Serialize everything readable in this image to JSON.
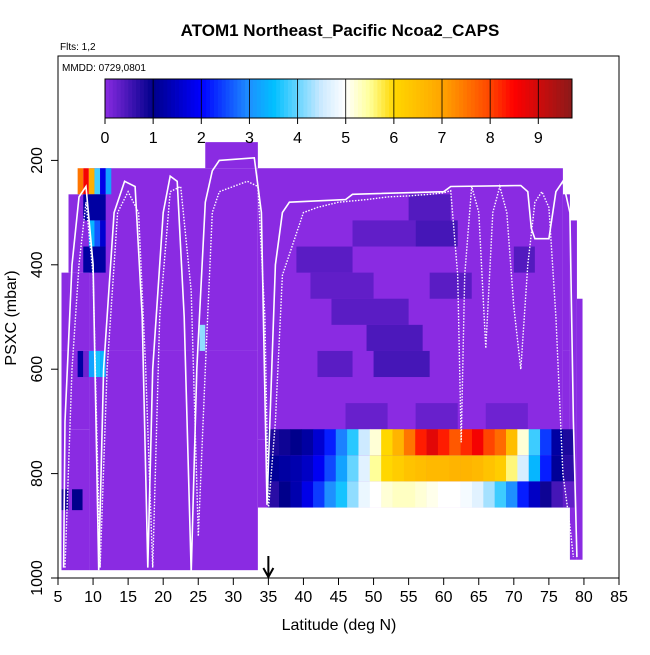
{
  "chart_data": {
    "type": "heatmap",
    "title": "ATOM1 Northeast_Pacific Ncoa2_CAPS",
    "annotations": {
      "flights": "Flts: 1,2",
      "dates": "MMDD: 0729,0801"
    },
    "xlabel": "Latitude (deg N)",
    "ylabel": "PSXC (mbar)",
    "xlim": [
      5,
      85
    ],
    "ylim": [
      1000,
      0
    ],
    "xticks": [
      5,
      10,
      15,
      20,
      25,
      30,
      35,
      40,
      45,
      50,
      55,
      60,
      65,
      70,
      75,
      80,
      85
    ],
    "yticks": [
      200,
      400,
      600,
      800,
      1000
    ],
    "colorbar": {
      "min": 0,
      "max": 9.7,
      "ticks": [
        0,
        1,
        2,
        3,
        4,
        5,
        6,
        7,
        8,
        9
      ],
      "stops": [
        {
          "v": 0,
          "c": "#8a2be2"
        },
        {
          "v": 1,
          "c": "#00008b"
        },
        {
          "v": 2,
          "c": "#0000ff"
        },
        {
          "v": 3,
          "c": "#1e90ff"
        },
        {
          "v": 3.5,
          "c": "#00bfff"
        },
        {
          "v": 4.5,
          "c": "#cdeaff"
        },
        {
          "v": 5,
          "c": "#ffffff"
        },
        {
          "v": 5.5,
          "c": "#ffff99"
        },
        {
          "v": 6,
          "c": "#ffd700"
        },
        {
          "v": 7,
          "c": "#ffa500"
        },
        {
          "v": 8,
          "c": "#ff4500"
        },
        {
          "v": 8.5,
          "c": "#ff0000"
        },
        {
          "v": 9.7,
          "c": "#8b1a1a"
        }
      ]
    },
    "cells": [
      [
        5.5,
        6.5,
        415,
        565,
        0
      ],
      [
        5.5,
        6.5,
        565,
        985,
        0
      ],
      [
        5.5,
        6.5,
        830,
        870,
        0.8
      ],
      [
        6.5,
        9.5,
        265,
        415,
        0
      ],
      [
        6.5,
        9.5,
        415,
        565,
        0
      ],
      [
        6.5,
        9.5,
        565,
        715,
        0
      ],
      [
        6.5,
        9.5,
        715,
        985,
        0
      ],
      [
        7,
        8.5,
        830,
        870,
        1
      ],
      [
        9.5,
        33.5,
        215,
        565,
        0
      ],
      [
        9.5,
        33.5,
        565,
        985,
        0
      ],
      [
        7.8,
        8.6,
        215,
        265,
        7.5
      ],
      [
        8.6,
        9.4,
        215,
        265,
        8.6
      ],
      [
        9.4,
        10.2,
        215,
        265,
        6.8
      ],
      [
        10.2,
        11,
        215,
        265,
        3.8
      ],
      [
        11,
        11.8,
        215,
        265,
        1.8
      ],
      [
        11.8,
        12.6,
        215,
        265,
        3.2
      ],
      [
        8.6,
        11.8,
        265,
        315,
        1.2
      ],
      [
        9.4,
        10.2,
        315,
        365,
        3.4
      ],
      [
        10.2,
        11,
        315,
        365,
        2.6
      ],
      [
        11,
        11.8,
        315,
        365,
        1.6
      ],
      [
        8.6,
        11.8,
        365,
        415,
        1.2
      ],
      [
        7.8,
        8.6,
        565,
        615,
        1.2
      ],
      [
        8.6,
        9.4,
        565,
        615,
        0.2
      ],
      [
        9.4,
        10.2,
        565,
        615,
        3.2
      ],
      [
        10.2,
        11,
        565,
        615,
        3.6
      ],
      [
        11,
        11.8,
        565,
        615,
        3.4
      ],
      [
        25.2,
        26,
        515,
        565,
        4.2
      ],
      [
        26,
        33.5,
        165,
        215,
        0
      ],
      [
        33.5,
        77,
        215,
        735,
        0
      ],
      [
        33.5,
        77,
        735,
        865,
        0
      ],
      [
        77,
        78,
        265,
        565,
        0
      ],
      [
        77,
        78,
        565,
        865,
        0
      ],
      [
        78,
        79,
        315,
        965,
        0
      ],
      [
        79,
        79.8,
        465,
        965,
        0
      ],
      [
        39,
        47,
        365,
        415,
        0.35
      ],
      [
        41,
        50,
        415,
        465,
        0.3
      ],
      [
        44,
        55,
        465,
        515,
        0.35
      ],
      [
        49,
        57,
        515,
        565,
        0.45
      ],
      [
        50,
        58,
        565,
        615,
        0.5
      ],
      [
        47,
        56,
        315,
        365,
        0.3
      ],
      [
        56,
        62,
        315,
        365,
        0.5
      ],
      [
        55,
        61,
        265,
        315,
        0.4
      ],
      [
        42,
        47,
        565,
        615,
        0.35
      ],
      [
        58,
        64,
        415,
        465,
        0.35
      ],
      [
        46,
        52,
        665,
        715,
        0.25
      ],
      [
        56,
        62,
        665,
        715,
        0.25
      ],
      [
        66,
        72,
        665,
        715,
        0.2
      ],
      [
        70,
        73,
        365,
        415,
        0.4
      ]
    ],
    "transect": {
      "x_start": 34.9,
      "x_end": 78.6,
      "bands": [
        [
          715,
          765,
          0
        ],
        [
          765,
          815,
          4
        ],
        [
          815,
          865,
          8
        ]
      ],
      "profiles": [
        [
          0.8,
          1.1,
          0.7
        ],
        [
          0.9,
          1.2,
          1.0
        ],
        [
          1.0,
          1.3,
          1.3
        ],
        [
          1.2,
          1.5,
          1.8
        ],
        [
          1.6,
          1.9,
          2.4
        ],
        [
          2.2,
          2.5,
          3.0
        ],
        [
          2.9,
          3.2,
          3.6
        ],
        [
          3.7,
          4.0,
          4.2
        ],
        [
          4.5,
          4.7,
          4.8
        ],
        [
          5.2,
          5.5,
          5.0
        ],
        [
          6.0,
          6.0,
          5.2
        ],
        [
          6.7,
          6.2,
          5.3
        ],
        [
          7.5,
          6.4,
          5.3
        ],
        [
          8.3,
          6.5,
          5.2
        ],
        [
          8.8,
          6.6,
          5.1
        ],
        [
          8.3,
          6.6,
          5.0
        ],
        [
          7.8,
          6.7,
          5.0
        ],
        [
          8.2,
          6.7,
          4.9
        ],
        [
          8.6,
          6.6,
          4.7
        ],
        [
          8.0,
          6.4,
          4.3
        ],
        [
          7.6,
          6.2,
          3.8
        ],
        [
          6.5,
          5.6,
          3.0
        ],
        [
          5.2,
          4.6,
          2.2
        ],
        [
          3.8,
          3.4,
          1.5
        ],
        [
          2.4,
          2.2,
          0.9
        ],
        [
          1.2,
          1.1,
          0.5
        ],
        [
          0.8,
          0.7,
          0.3
        ]
      ]
    },
    "flight_tracks": [
      {
        "name": "track-1",
        "points": [
          [
            5.8,
            980
          ],
          [
            6,
            700
          ],
          [
            7,
            400
          ],
          [
            8,
            270
          ],
          [
            9,
            250
          ],
          [
            10,
            400
          ],
          [
            10.8,
            985
          ],
          [
            11.5,
            600
          ],
          [
            13,
            300
          ],
          [
            14.5,
            240
          ],
          [
            16,
            250
          ],
          [
            17,
            500
          ],
          [
            17.8,
            980
          ],
          [
            18.5,
            600
          ],
          [
            20,
            300
          ],
          [
            21,
            230
          ],
          [
            22,
            240
          ],
          [
            23,
            500
          ],
          [
            24,
            990
          ],
          [
            24.8,
            600
          ],
          [
            26,
            280
          ],
          [
            27,
            220
          ],
          [
            28,
            200
          ],
          [
            33,
            195
          ],
          [
            34,
            300
          ],
          [
            34.8,
            860
          ],
          [
            36,
            400
          ],
          [
            37,
            300
          ],
          [
            38,
            280
          ],
          [
            46,
            275
          ],
          [
            47,
            265
          ],
          [
            60,
            260
          ],
          [
            61,
            250
          ],
          [
            71,
            248
          ],
          [
            72,
            260
          ],
          [
            72.5,
            330
          ],
          [
            73,
            350
          ],
          [
            75,
            350
          ],
          [
            76,
            260
          ],
          [
            77,
            240
          ],
          [
            78,
            300
          ],
          [
            78.5,
            700
          ],
          [
            79,
            960
          ]
        ]
      },
      {
        "name": "track-2",
        "points": [
          [
            6,
            980
          ],
          [
            7,
            600
          ],
          [
            8,
            400
          ],
          [
            9,
            280
          ],
          [
            10,
            420
          ],
          [
            11,
            980
          ],
          [
            12,
            600
          ],
          [
            13.5,
            300
          ],
          [
            15,
            260
          ],
          [
            16.5,
            300
          ],
          [
            17.5,
            600
          ],
          [
            18.5,
            980
          ],
          [
            19.5,
            500
          ],
          [
            21,
            260
          ],
          [
            22.5,
            250
          ],
          [
            24,
            450
          ],
          [
            25,
            920
          ],
          [
            26,
            600
          ],
          [
            27,
            300
          ],
          [
            28,
            260
          ],
          [
            30,
            250
          ],
          [
            32,
            240
          ],
          [
            33.5,
            250
          ],
          [
            34.5,
            500
          ],
          [
            35,
            870
          ],
          [
            36,
            700
          ],
          [
            37,
            420
          ],
          [
            40,
            300
          ],
          [
            42,
            290
          ],
          [
            45,
            280
          ],
          [
            49,
            275
          ],
          [
            52,
            270
          ],
          [
            55,
            268
          ],
          [
            58,
            265
          ],
          [
            60,
            262
          ],
          [
            61,
            258
          ],
          [
            62,
            420
          ],
          [
            62.5,
            740
          ],
          [
            63,
            420
          ],
          [
            64,
            250
          ],
          [
            65,
            300
          ],
          [
            66,
            560
          ],
          [
            67,
            300
          ],
          [
            68,
            250
          ],
          [
            69,
            300
          ],
          [
            70,
            480
          ],
          [
            71,
            600
          ],
          [
            72,
            400
          ],
          [
            73,
            280
          ],
          [
            74,
            260
          ],
          [
            75,
            290
          ],
          [
            76,
            500
          ],
          [
            77,
            800
          ],
          [
            78,
            900
          ],
          [
            78.5,
            960
          ]
        ]
      }
    ],
    "arrow_x": 35
  }
}
